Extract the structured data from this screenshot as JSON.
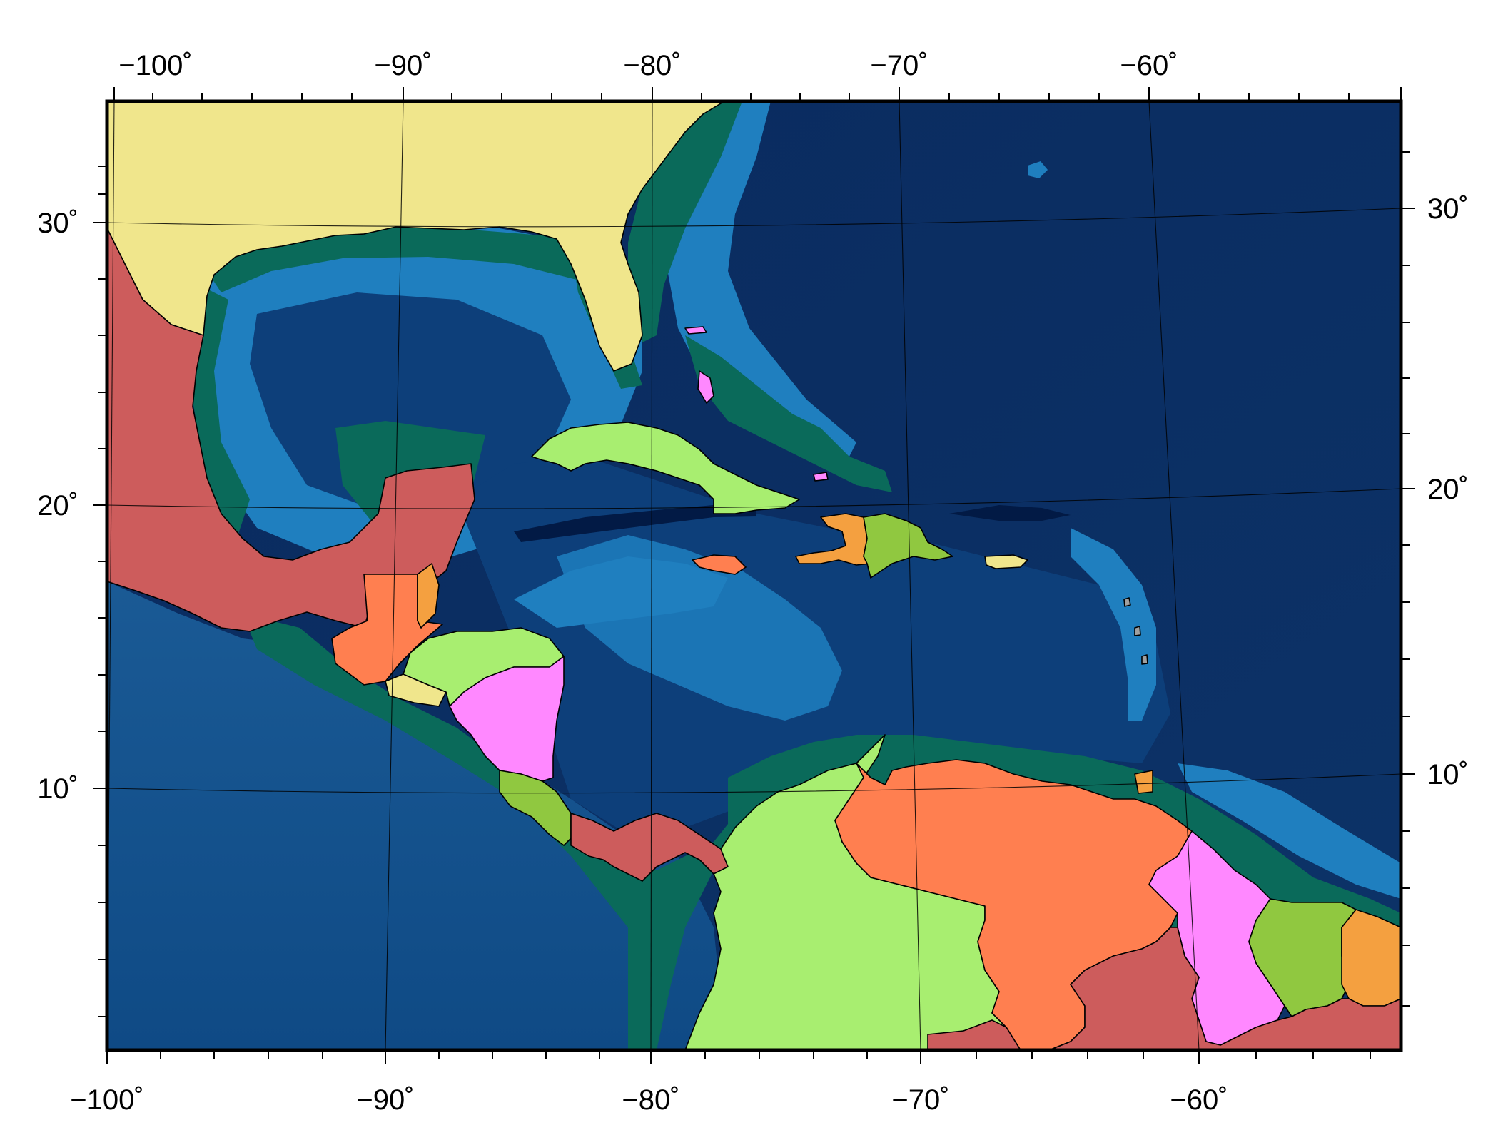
{
  "map": {
    "projection": "lambert-conic",
    "frame": "plain",
    "colors": {
      "abyssal_ocean": "#0a2a5e",
      "pacific_ocean": "#0f4a85",
      "slope": "#1f7fbf",
      "shelf": "#0a6a5a",
      "deep_trench": "#021a45",
      "coast": "#000000"
    },
    "ticks": {
      "top": [
        "−100˚",
        "−90˚",
        "−80˚",
        "−70˚",
        "−60˚"
      ],
      "bottom": [
        "−100˚",
        "−90˚",
        "−80˚",
        "−70˚",
        "−60˚"
      ],
      "left": [
        "30˚",
        "20˚",
        "10˚"
      ],
      "right": [
        "30˚",
        "20˚",
        "10˚"
      ]
    },
    "countries": [
      {
        "name": "United States",
        "color": "#f0e68c"
      },
      {
        "name": "Mexico",
        "color": "#cd5c5c"
      },
      {
        "name": "Guatemala",
        "color": "#ff7f50"
      },
      {
        "name": "Belize",
        "color": "#f4a040"
      },
      {
        "name": "Honduras",
        "color": "#a8ee70"
      },
      {
        "name": "El Salvador",
        "color": "#f0e68c"
      },
      {
        "name": "Nicaragua",
        "color": "#ff88ff"
      },
      {
        "name": "Costa Rica",
        "color": "#90c840"
      },
      {
        "name": "Panama",
        "color": "#cd5c5c"
      },
      {
        "name": "Colombia",
        "color": "#a8ee70"
      },
      {
        "name": "Venezuela",
        "color": "#ff7f50"
      },
      {
        "name": "Guyana",
        "color": "#ff88ff"
      },
      {
        "name": "Suriname",
        "color": "#90c840"
      },
      {
        "name": "French Guiana",
        "color": "#f4a040"
      },
      {
        "name": "Brazil",
        "color": "#cd5c5c"
      },
      {
        "name": "Cuba",
        "color": "#a8ee70"
      },
      {
        "name": "Jamaica",
        "color": "#ff7f50"
      },
      {
        "name": "Haiti",
        "color": "#f4a040"
      },
      {
        "name": "Dominican Republic",
        "color": "#90c840"
      },
      {
        "name": "Puerto Rico",
        "color": "#f0e68c"
      },
      {
        "name": "Bahamas",
        "color": "#ff88ff"
      }
    ]
  }
}
